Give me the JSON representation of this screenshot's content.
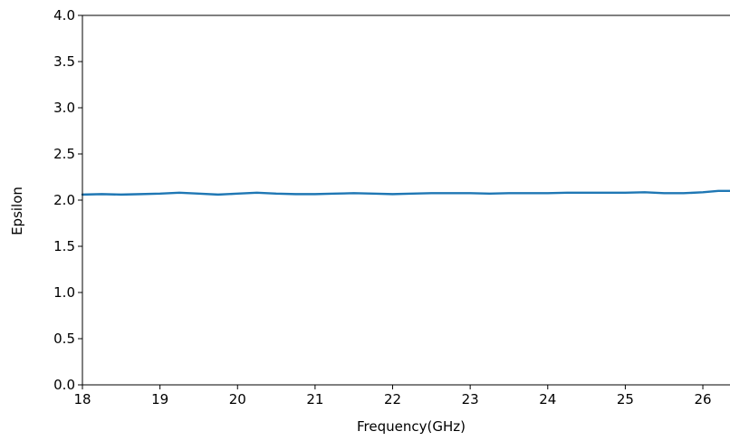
{
  "chart_data": {
    "type": "line",
    "title": "",
    "xlabel": "Frequency(GHz)",
    "ylabel": "Epsilon",
    "xlim": [
      18,
      26.35
    ],
    "ylim": [
      0.0,
      4.0
    ],
    "x_ticks": [
      "18",
      "19",
      "20",
      "21",
      "22",
      "23",
      "24",
      "25",
      "26"
    ],
    "y_ticks": [
      "0.0",
      "0.5",
      "1.0",
      "1.5",
      "2.0",
      "2.5",
      "3.0",
      "3.5",
      "4.0"
    ],
    "grid": false,
    "legend": "none",
    "series": [
      {
        "color": "#1f77b4",
        "x": [
          18.0,
          18.25,
          18.5,
          18.75,
          19.0,
          19.25,
          19.5,
          19.75,
          20.0,
          20.25,
          20.5,
          20.75,
          21.0,
          21.25,
          21.5,
          21.75,
          22.0,
          22.25,
          22.5,
          22.75,
          23.0,
          23.25,
          23.5,
          23.75,
          24.0,
          24.25,
          24.5,
          24.75,
          25.0,
          25.25,
          25.5,
          25.75,
          26.0,
          26.2,
          26.35
        ],
        "y": [
          2.06,
          2.065,
          2.06,
          2.065,
          2.07,
          2.08,
          2.07,
          2.06,
          2.07,
          2.08,
          2.07,
          2.065,
          2.065,
          2.07,
          2.075,
          2.07,
          2.065,
          2.07,
          2.075,
          2.075,
          2.075,
          2.07,
          2.075,
          2.075,
          2.075,
          2.08,
          2.08,
          2.08,
          2.08,
          2.085,
          2.075,
          2.075,
          2.085,
          2.1,
          2.1
        ]
      }
    ]
  }
}
